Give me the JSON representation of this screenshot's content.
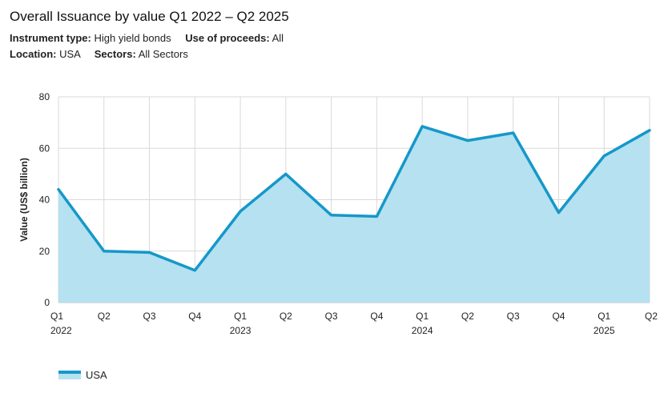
{
  "header": {
    "title": "Overall Issuance by value Q1 2022 – Q2 2025",
    "filters_row1": [
      {
        "label": "Instrument type:",
        "value": "High yield bonds"
      },
      {
        "label": "Use of proceeds:",
        "value": "All"
      }
    ],
    "filters_row2": [
      {
        "label": "Location:",
        "value": "USA"
      },
      {
        "label": "Sectors:",
        "value": "All Sectors"
      }
    ]
  },
  "colors": {
    "line": "#1598c9",
    "fill": "#b5e1f0",
    "grid": "#d9d9d9",
    "axis": "#bfbfbf"
  },
  "chart_data": {
    "type": "area",
    "title": "Overall Issuance by value Q1 2022 – Q2 2025",
    "xlabel": "",
    "ylabel": "Value (US$ billion)",
    "ylim": [
      0,
      80
    ],
    "yticks": [
      0,
      20,
      40,
      60,
      80
    ],
    "grid": true,
    "legend_position": "bottom-left",
    "categories": [
      "Q1",
      "Q2",
      "Q3",
      "Q4",
      "Q1",
      "Q2",
      "Q3",
      "Q4",
      "Q1",
      "Q2",
      "Q3",
      "Q4",
      "Q1",
      "Q2"
    ],
    "year_labels": [
      "2022",
      "",
      "",
      "",
      "2023",
      "",
      "",
      "",
      "2024",
      "",
      "",
      "",
      "2025",
      ""
    ],
    "series": [
      {
        "name": "USA",
        "values": [
          44,
          20,
          19.5,
          12.5,
          35.5,
          50,
          34,
          33.5,
          68.5,
          63,
          66,
          35,
          57,
          67
        ]
      }
    ]
  }
}
